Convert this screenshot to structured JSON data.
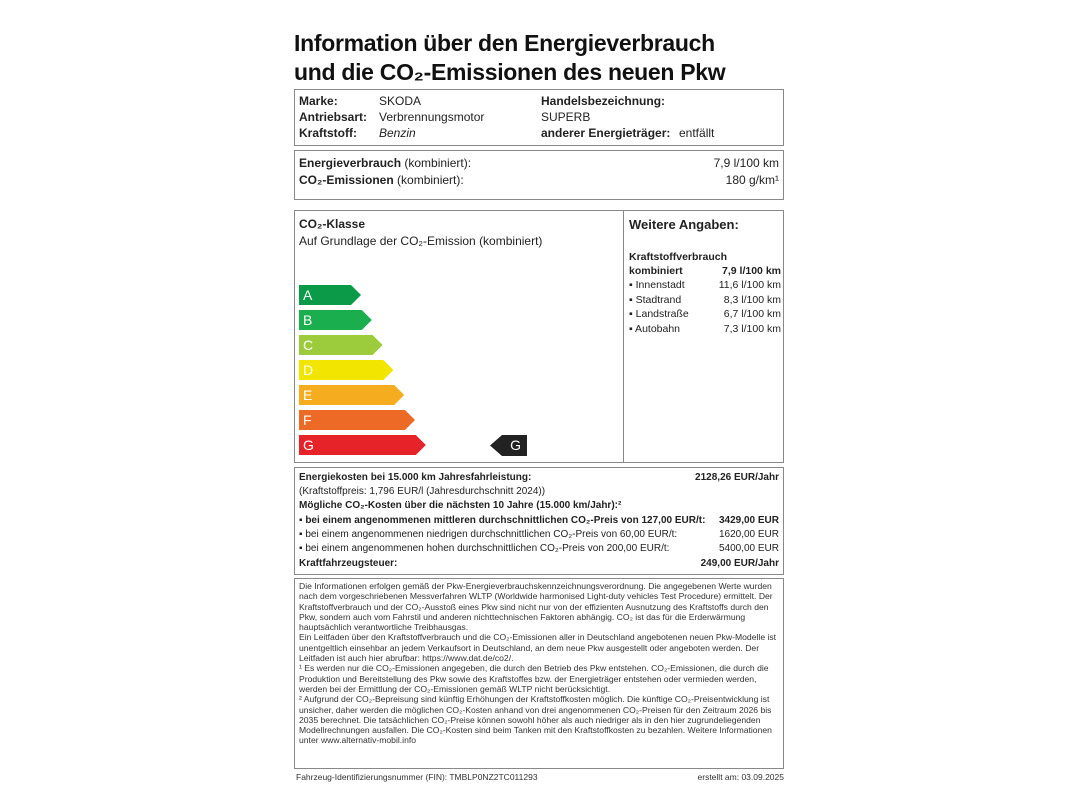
{
  "title": {
    "line1": "Information über den Energieverbrauch",
    "line2": "und die CO₂-Emissionen des neuen Pkw"
  },
  "vehicle": {
    "marke_label": "Marke:",
    "marke": "SKODA",
    "antrieb_label": "Antriebsart:",
    "antrieb": "Verbrennungsmotor",
    "kraftstoff_label": "Kraftstoff:",
    "kraftstoff": "Benzin",
    "handel_label": "Handelsbezeichnung:",
    "handel": "SUPERB",
    "energietraeger_label": "anderer Energieträger:",
    "energietraeger": "entfällt"
  },
  "consumption": {
    "energie_label": "Energieverbrauch",
    "energie_suffix": " (kombiniert):",
    "energie_value": "7,9 l/100 km",
    "co2_label": "CO₂-Emissionen",
    "co2_suffix": " (kombiniert):",
    "co2_value": "180 g/km¹"
  },
  "co2_class": {
    "heading": "CO₂-Klasse",
    "subheading": "Auf Grundlage der CO₂-Emission (kombiniert)",
    "classes": [
      {
        "letter": "A",
        "color": "#0a9a48"
      },
      {
        "letter": "B",
        "color": "#1aae4e"
      },
      {
        "letter": "C",
        "color": "#9ccb3b"
      },
      {
        "letter": "D",
        "color": "#f2e500"
      },
      {
        "letter": "E",
        "color": "#f5ad1f"
      },
      {
        "letter": "F",
        "color": "#ec6a25"
      },
      {
        "letter": "G",
        "color": "#e52329"
      }
    ],
    "current": "G",
    "indicator_color": "#222222"
  },
  "further": {
    "heading": "Weitere Angaben:",
    "sub": "Kraftstoffverbrauch",
    "combined_label": "kombiniert",
    "combined_value": "7,9 l/100 km",
    "items": [
      {
        "label": "▪ Innenstadt",
        "value": "11,6 l/100 km"
      },
      {
        "label": "▪ Stadtrand",
        "value": "8,3 l/100 km"
      },
      {
        "label": "▪ Landstraße",
        "value": "6,7 l/100 km"
      },
      {
        "label": "▪ Autobahn",
        "value": "7,3 l/100 km"
      }
    ]
  },
  "costs": {
    "energy_label": "Energiekosten bei 15.000 km Jahresfahrleistung:",
    "energy_value": "2128,26 EUR/Jahr",
    "fuel_price": "(Kraftstoffpreis: 1,796 EUR/l (Jahresdurchschnitt 2024))",
    "co2_heading": "Mögliche CO₂-Kosten über die nächsten 10 Jahre (15.000 km/Jahr):²",
    "mid_label": "▪ bei einem angenommenen mittleren durchschnittlichen CO₂-Preis von 127,00 EUR/t:",
    "mid_value": "3429,00 EUR",
    "low_label": "▪ bei einem angenommenen niedrigen durchschnittlichen CO₂-Preis von 60,00 EUR/t:",
    "low_value": "1620,00 EUR",
    "high_label": "▪ bei einem angenommenen hohen durchschnittlichen CO₂-Preis von 200,00 EUR/t:",
    "high_value": "5400,00 EUR",
    "tax_label": "Kraftfahrzeugsteuer:",
    "tax_value": "249,00 EUR/Jahr"
  },
  "notes": {
    "p1": "Die Informationen erfolgen gemäß der Pkw-Energieverbrauchskennzeichnungsverordnung. Die angegebenen Werte wurden nach dem vorgeschriebenen Messverfahren WLTP (Worldwide harmonised Light-duty vehicles Test Procedure) ermittelt. Der Kraftstoffverbrauch und der CO₂-Ausstoß eines Pkw sind nicht nur von der effizienten Ausnutzung des Kraftstoffs durch den Pkw, sondern auch vom Fahrstil und anderen nichttechnischen Faktoren abhängig. CO₂ ist das für die Erderwärmung hauptsächlich verantwortliche Treibhausgas.",
    "p2": "Ein Leitfaden über den Kraftstoffverbrauch und die CO₂-Emissionen aller in Deutschland angebotenen neuen Pkw-Modelle ist unentgeltlich einsehbar an jedem Verkaufsort in Deutschland, an dem neue Pkw ausgestellt oder angeboten werden. Der Leitfaden ist auch hier abrufbar: https://www.dat.de/co2/.",
    "p3": "¹ Es werden nur die CO₂-Emissionen angegeben, die durch den Betrieb des Pkw entstehen. CO₂-Emissionen, die durch die Produktion und Bereitstellung des Pkw sowie des Kraftstoffes bzw. der Energieträger entstehen oder vermieden werden, werden bei der Ermittlung der CO₂-Emissionen gemäß WLTP nicht berücksichtigt.",
    "p4": "² Aufgrund der CO₂-Bepreisung sind künftig Erhöhungen der Kraftstoffkosten möglich. Die künftige CO₂-Preisentwicklung ist unsicher, daher werden die möglichen CO₂-Kosten anhand von drei angenommenen CO₂-Preisen für den Zeitraum 2026 bis 2035 berechnet. Die tatsächlichen CO₂-Preise können sowohl höher als auch niedriger als in den hier zugrundeliegenden Modellrechnungen ausfallen. Die CO₂-Kosten sind beim Tanken mit den Kraftstoffkosten zu bezahlen. Weitere Informationen unter www.alternativ-mobil.info"
  },
  "footer": {
    "fin": "Fahrzeug-Identifizierungsnummer (FIN): TMBLP0NZ2TC011293",
    "date": "erstellt am: 03.09.2025"
  }
}
